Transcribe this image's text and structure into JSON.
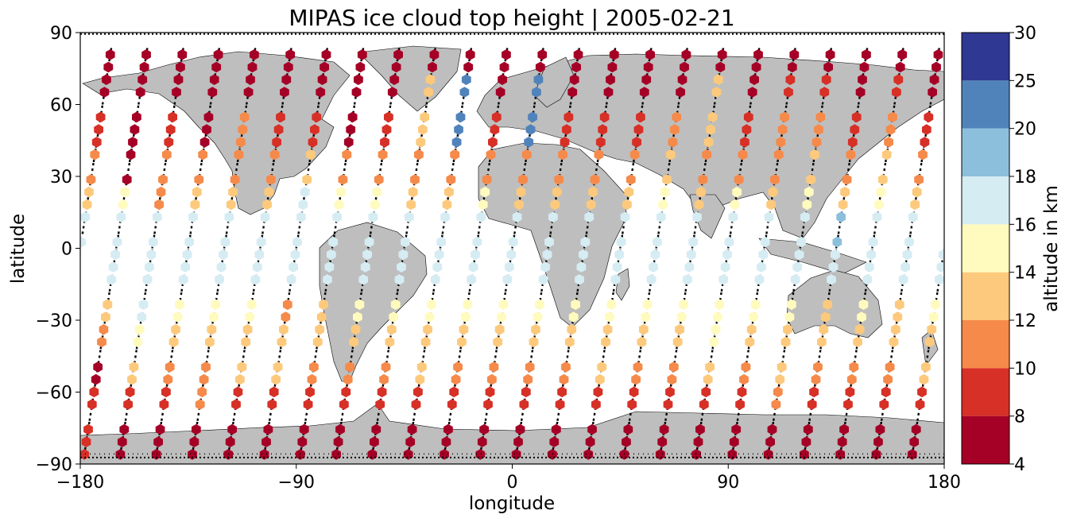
{
  "chart_data": {
    "type": "scatter",
    "title": "MIPAS ice cloud top height | 2005-02-21",
    "xlabel": "longitude",
    "ylabel": "latitude",
    "xlim": [
      -180,
      180
    ],
    "ylim": [
      -90,
      90
    ],
    "xticks": [
      -180,
      -90,
      0,
      90,
      180
    ],
    "yticks": [
      -90,
      -60,
      -30,
      0,
      30,
      60,
      90
    ],
    "xtick_labels": [
      "−180",
      "−90",
      "0",
      "90",
      "180"
    ],
    "ytick_labels": [
      "−90",
      "−60",
      "−30",
      "0",
      "30",
      "60",
      "90"
    ],
    "grid": false,
    "background_map": "world coastlines, land in grey",
    "colorbar": {
      "label": "altitude in km",
      "boundaries": [
        4,
        8,
        10,
        12,
        14,
        16,
        18,
        20,
        25,
        30
      ],
      "tick_labels": [
        "4",
        "8",
        "10",
        "12",
        "14",
        "16",
        "18",
        "20",
        "25",
        "30"
      ],
      "colors": [
        "#a50026",
        "#d73027",
        "#f46d43",
        "#fdae61",
        "#fee090",
        "#ffffbf",
        "#e0f3f8",
        "#abd9e9",
        "#74add1",
        "#4575b4",
        "#313695"
      ]
    },
    "colors": {
      "band_4_8": "#a50026",
      "band_8_10": "#d73027",
      "band_10_12": "#f58a4b",
      "band_12_14": "#fdc97c",
      "band_14_16": "#fffbbe",
      "band_16_18": "#d6ecf3",
      "band_18_20": "#8cbfdc",
      "band_20_25": "#5183bb",
      "band_25_30": "#2f3892",
      "land": "#bebebe",
      "track": "#000000"
    },
    "series": [
      {
        "name": "cloud detections (hexagon markers, color = altitude)",
        "note": "markers along descending orbit tracks; values approximate"
      },
      {
        "name": "cloud-free measurements (black dotted tracks)"
      }
    ],
    "tracks": [
      {
        "lon_south": -178,
        "lon_north": -152,
        "altitude_profile": [
          8,
          8,
          7,
          10,
          13,
          17,
          17,
          15,
          6,
          6,
          7,
          6
        ]
      },
      {
        "lon_south": -163,
        "lon_north": -137,
        "altitude_profile": [
          7,
          9,
          12,
          14,
          16,
          17,
          16,
          11,
          11,
          8,
          6,
          7
        ]
      },
      {
        "lon_south": -148,
        "lon_north": -122,
        "altitude_profile": [
          7,
          9,
          11,
          13,
          15,
          17,
          17,
          13,
          11,
          7,
          6,
          7
        ]
      },
      {
        "lon_south": -133,
        "lon_north": -107,
        "altitude_profile": [
          6,
          10,
          11,
          13,
          14,
          17,
          17,
          13,
          11,
          10,
          7,
          6
        ]
      },
      {
        "lon_south": -118,
        "lon_north": -92,
        "altitude_profile": [
          7,
          9,
          12,
          13,
          14,
          17,
          17,
          12,
          11,
          8,
          6,
          7
        ]
      },
      {
        "lon_south": -103,
        "lon_north": -77,
        "altitude_profile": [
          7,
          8,
          12,
          13,
          11,
          17,
          17,
          16,
          12,
          9,
          6,
          7
        ]
      },
      {
        "lon_south": -88,
        "lon_north": -62,
        "altitude_profile": [
          7,
          8,
          10,
          13,
          13,
          17,
          17,
          14,
          10,
          7,
          6,
          7
        ]
      },
      {
        "lon_south": -73,
        "lon_north": -47,
        "altitude_profile": [
          6,
          9,
          11,
          13,
          14,
          17,
          17,
          14,
          10,
          9,
          7,
          6
        ]
      },
      {
        "lon_south": -58,
        "lon_north": -32,
        "altitude_profile": [
          7,
          9,
          11,
          13,
          15,
          17,
          17,
          13,
          11,
          12,
          13,
          6
        ]
      },
      {
        "lon_south": -43,
        "lon_north": -17,
        "altitude_profile": [
          7,
          9,
          12,
          13,
          14,
          17,
          17,
          13,
          11,
          21,
          21,
          7
        ]
      },
      {
        "lon_south": -28,
        "lon_north": -2,
        "altitude_profile": [
          6,
          8,
          11,
          12,
          14,
          17,
          17,
          15,
          11,
          8,
          7,
          6
        ]
      },
      {
        "lon_south": -13,
        "lon_north": 13,
        "altitude_profile": [
          7,
          9,
          11,
          13,
          14,
          17,
          17,
          13,
          10,
          21,
          21,
          7
        ]
      },
      {
        "lon_south": 2,
        "lon_north": 28,
        "altitude_profile": [
          7,
          8,
          11,
          13,
          15,
          17,
          17,
          13,
          10,
          8,
          6,
          6
        ]
      },
      {
        "lon_south": 17,
        "lon_north": 43,
        "altitude_profile": [
          6,
          9,
          11,
          13,
          14,
          17,
          17,
          13,
          11,
          8,
          7,
          7
        ]
      },
      {
        "lon_south": 32,
        "lon_north": 58,
        "altitude_profile": [
          7,
          9,
          12,
          13,
          14,
          17,
          17,
          13,
          11,
          9,
          6,
          6
        ]
      },
      {
        "lon_south": 47,
        "lon_north": 73,
        "altitude_profile": [
          7,
          9,
          11,
          13,
          15,
          17,
          17,
          14,
          12,
          10,
          7,
          7
        ]
      },
      {
        "lon_south": 62,
        "lon_north": 88,
        "altitude_profile": [
          6,
          8,
          11,
          13,
          14,
          17,
          17,
          13,
          11,
          13,
          12,
          6
        ]
      },
      {
        "lon_south": 77,
        "lon_north": 103,
        "altitude_profile": [
          7,
          9,
          12,
          14,
          15,
          17,
          17,
          14,
          11,
          9,
          7,
          7
        ]
      },
      {
        "lon_south": 92,
        "lon_north": 118,
        "altitude_profile": [
          7,
          9,
          11,
          13,
          14,
          17,
          17,
          13,
          11,
          10,
          8,
          6
        ]
      },
      {
        "lon_south": 107,
        "lon_north": 133,
        "altitude_profile": [
          6,
          10,
          12,
          13,
          14,
          17,
          17,
          14,
          12,
          10,
          8,
          7
        ]
      },
      {
        "lon_south": 122,
        "lon_north": 148,
        "altitude_profile": [
          7,
          9,
          11,
          12,
          13,
          17,
          19,
          13,
          11,
          9,
          7,
          6
        ]
      },
      {
        "lon_south": 137,
        "lon_north": 163,
        "altitude_profile": [
          7,
          9,
          11,
          13,
          14,
          17,
          17,
          14,
          12,
          10,
          8,
          7
        ]
      },
      {
        "lon_south": 152,
        "lon_north": 178,
        "altitude_profile": [
          6,
          8,
          11,
          13,
          13,
          17,
          17,
          12,
          10,
          9,
          7,
          6
        ]
      },
      {
        "lon_south": 167,
        "lon_north": 193,
        "altitude_profile": [
          7,
          9,
          12,
          12,
          14,
          17,
          17,
          13,
          11,
          8,
          7,
          7
        ]
      }
    ]
  }
}
